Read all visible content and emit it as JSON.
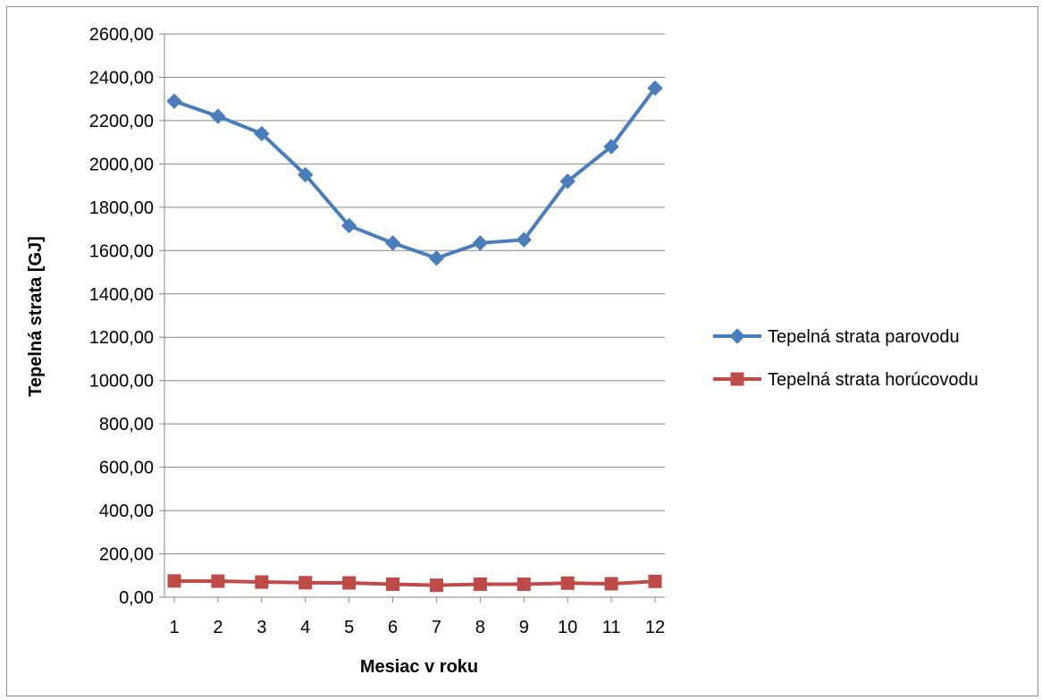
{
  "chart_data": {
    "type": "line",
    "title": "",
    "xlabel": "Mesiac v roku",
    "ylabel": "Tepelná strata [GJ]",
    "categories": [
      "1",
      "2",
      "3",
      "4",
      "5",
      "6",
      "7",
      "8",
      "9",
      "10",
      "11",
      "12"
    ],
    "ylim": [
      0,
      2600
    ],
    "ytick_labels": [
      "0,00",
      "200,00",
      "400,00",
      "600,00",
      "800,00",
      "1000,00",
      "1200,00",
      "1400,00",
      "1600,00",
      "1800,00",
      "2000,00",
      "2200,00",
      "2400,00",
      "2600,00"
    ],
    "grid": true,
    "legend_position": "right",
    "series": [
      {
        "name": "Tepelná strata parovodu",
        "color": "#4a7ebb",
        "marker": "diamond",
        "values": [
          2290,
          2220,
          2140,
          1950,
          1715,
          1635,
          1565,
          1635,
          1650,
          1920,
          2080,
          2350
        ]
      },
      {
        "name": "Tepelná strata horúcovodu",
        "color": "#be4b48",
        "marker": "square",
        "values": [
          75,
          74,
          70,
          67,
          66,
          60,
          55,
          60,
          60,
          65,
          62,
          73
        ]
      }
    ]
  }
}
